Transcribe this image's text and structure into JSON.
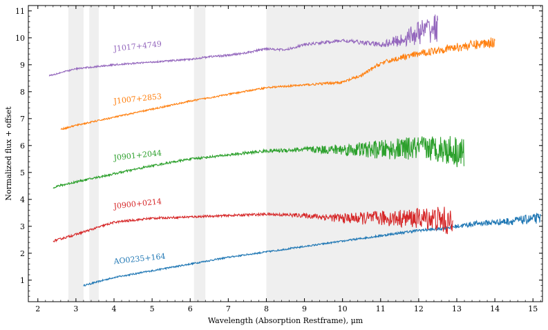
{
  "chart_data": {
    "type": "line",
    "title": "",
    "xlabel": "Wavelength (Absorption Restframe), μm",
    "ylabel": "Normalized flux + offset",
    "xlim": [
      1.75,
      15.25
    ],
    "ylim": [
      0.2,
      11.2
    ],
    "xticks": [
      2,
      3,
      4,
      5,
      6,
      7,
      8,
      9,
      10,
      11,
      12,
      13,
      14,
      15
    ],
    "yticks": [
      1,
      2,
      3,
      4,
      5,
      6,
      7,
      8,
      9,
      10,
      11
    ],
    "shaded_regions": [
      [
        2.8,
        3.2
      ],
      [
        3.35,
        3.6
      ],
      [
        6.1,
        6.4
      ],
      [
        8.0,
        12.0
      ]
    ],
    "series": [
      {
        "name": "AO0235+164",
        "color": "#1f77b4",
        "x": [
          3.2,
          4.0,
          5.0,
          6.0,
          7.0,
          8.0,
          9.0,
          10.0,
          11.0,
          12.0,
          12.5,
          13.0,
          13.5,
          14.0,
          14.5,
          15.2
        ],
        "y": [
          0.8,
          1.1,
          1.35,
          1.6,
          1.85,
          2.05,
          2.25,
          2.45,
          2.65,
          2.85,
          2.9,
          3.0,
          3.1,
          3.15,
          3.2,
          3.3
        ],
        "noise": [
          0.03,
          0.03,
          0.03,
          0.03,
          0.03,
          0.03,
          0.03,
          0.03,
          0.04,
          0.05,
          0.06,
          0.08,
          0.1,
          0.12,
          0.15,
          0.2
        ]
      },
      {
        "name": "J0900+0214",
        "color": "#d62728",
        "x": [
          2.4,
          3.0,
          4.0,
          5.0,
          6.0,
          7.0,
          8.0,
          9.0,
          10.0,
          11.0,
          11.8,
          12.4,
          12.7,
          12.9
        ],
        "y": [
          2.45,
          2.7,
          3.15,
          3.3,
          3.35,
          3.4,
          3.45,
          3.4,
          3.3,
          3.3,
          3.3,
          3.3,
          3.2,
          3.0
        ],
        "noise": [
          0.04,
          0.04,
          0.04,
          0.04,
          0.04,
          0.04,
          0.05,
          0.08,
          0.18,
          0.28,
          0.35,
          0.45,
          0.55,
          0.5
        ]
      },
      {
        "name": "J0901+2044",
        "color": "#2ca02c",
        "x": [
          2.4,
          3.0,
          4.0,
          5.0,
          6.0,
          7.0,
          8.0,
          9.0,
          10.0,
          11.0,
          12.0,
          12.5,
          13.0,
          13.2
        ],
        "y": [
          4.45,
          4.65,
          4.95,
          5.25,
          5.5,
          5.65,
          5.8,
          5.85,
          5.85,
          5.85,
          5.9,
          5.9,
          5.8,
          5.7
        ],
        "noise": [
          0.04,
          0.04,
          0.04,
          0.04,
          0.04,
          0.05,
          0.06,
          0.1,
          0.22,
          0.35,
          0.45,
          0.5,
          0.6,
          0.6
        ]
      },
      {
        "name": "J1007+2853",
        "color": "#ff7f0e",
        "x": [
          2.6,
          3.0,
          4.0,
          5.0,
          6.0,
          7.0,
          8.0,
          9.0,
          10.0,
          10.5,
          11.0,
          11.5,
          12.0,
          12.5,
          13.0,
          13.5,
          14.0
        ],
        "y": [
          6.6,
          6.75,
          7.05,
          7.35,
          7.65,
          7.9,
          8.15,
          8.25,
          8.35,
          8.6,
          9.05,
          9.25,
          9.4,
          9.55,
          9.65,
          9.75,
          9.85
        ],
        "noise": [
          0.03,
          0.03,
          0.03,
          0.03,
          0.03,
          0.03,
          0.03,
          0.04,
          0.05,
          0.06,
          0.08,
          0.1,
          0.12,
          0.14,
          0.16,
          0.18,
          0.2
        ]
      },
      {
        "name": "J1017+4749",
        "color": "#9467bd",
        "x": [
          2.3,
          3.0,
          4.0,
          5.0,
          6.0,
          6.5,
          7.0,
          7.5,
          8.0,
          8.5,
          9.0,
          10.0,
          11.0,
          11.5,
          12.0,
          12.5
        ],
        "y": [
          8.6,
          8.85,
          9.0,
          9.1,
          9.2,
          9.3,
          9.35,
          9.45,
          9.6,
          9.55,
          9.75,
          9.9,
          9.75,
          9.9,
          10.2,
          10.4
        ],
        "noise": [
          0.03,
          0.03,
          0.03,
          0.03,
          0.03,
          0.04,
          0.04,
          0.04,
          0.04,
          0.04,
          0.05,
          0.06,
          0.1,
          0.25,
          0.45,
          0.55
        ]
      }
    ]
  }
}
